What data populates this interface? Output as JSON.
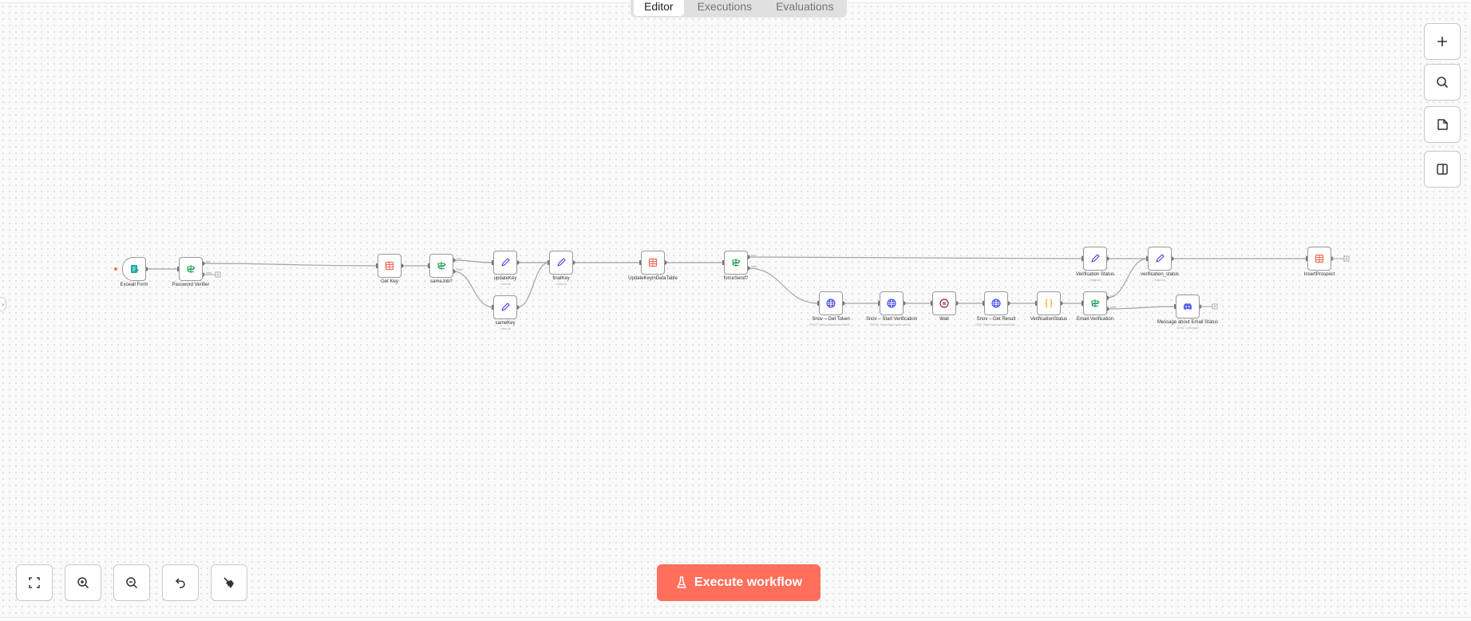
{
  "tabs": [
    {
      "label": "Editor",
      "active": true
    },
    {
      "label": "Executions",
      "active": false
    },
    {
      "label": "Evaluations",
      "active": false
    }
  ],
  "execute_button": {
    "label": "Execute workflow",
    "icon": "flask-icon",
    "color": "#ff6f5c"
  },
  "right_toolbar": [
    {
      "name": "add-node-button",
      "icon": "plus-icon"
    },
    {
      "name": "search-nodes-button",
      "icon": "search-icon"
    },
    {
      "name": "add-sticky-note-button",
      "icon": "sticky-note-icon"
    },
    {
      "name": "toggle-panel-button",
      "icon": "panel-icon"
    }
  ],
  "bottom_toolbar": [
    {
      "name": "fit-view-button",
      "icon": "fit-view-icon"
    },
    {
      "name": "zoom-in-button",
      "icon": "zoom-in-icon"
    },
    {
      "name": "zoom-out-button",
      "icon": "zoom-out-icon"
    },
    {
      "name": "undo-button",
      "icon": "undo-icon"
    },
    {
      "name": "tidy-up-button",
      "icon": "broom-icon"
    }
  ],
  "nodes": [
    {
      "id": "exceall",
      "label": "Exceall Form",
      "sub": "",
      "icon": "form-icon",
      "color": "#19a9a4"
    },
    {
      "id": "pwd",
      "label": "Password Verifier",
      "sub": "",
      "icon": "if-icon",
      "color": "#1f9d55"
    },
    {
      "id": "getkey",
      "label": "Get Key",
      "sub": "",
      "icon": "table-icon",
      "color": "#f2674f"
    },
    {
      "id": "samejob",
      "label": "sameJob?",
      "sub": "",
      "icon": "if-icon",
      "color": "#1f9d55"
    },
    {
      "id": "updatekey",
      "label": "updateKey",
      "sub": "manual",
      "icon": "pencil-icon",
      "color": "#3d43e6"
    },
    {
      "id": "samekey",
      "label": "sameKey",
      "sub": "manual",
      "icon": "pencil-icon",
      "color": "#3d43e6"
    },
    {
      "id": "finalkey",
      "label": "finalKey",
      "sub": "manual",
      "icon": "pencil-icon",
      "color": "#3d43e6"
    },
    {
      "id": "updatetable",
      "label": "UpdateKeyInDataTable",
      "sub": "",
      "icon": "table-icon",
      "color": "#f2674f"
    },
    {
      "id": "forcesend",
      "label": "forceSend?",
      "sub": "",
      "icon": "if-icon",
      "color": "#1f9d55"
    },
    {
      "id": "token",
      "label": "Snov – Get Token",
      "sub": "POST: https://api.snov.io/v1/...",
      "icon": "globe-icon",
      "color": "#3d43e6"
    },
    {
      "id": "startver",
      "label": "Snov – Start Verification",
      "sub": "POST: https://api.snov.io/v2/...",
      "icon": "globe-icon",
      "color": "#3d43e6"
    },
    {
      "id": "wait",
      "label": "Wait",
      "sub": "",
      "icon": "pause-icon",
      "color": "#8a1c3c"
    },
    {
      "id": "getresult",
      "label": "Snov – Get Result",
      "sub": "GET: https://api.snov.io/v2/e...",
      "icon": "globe-icon",
      "color": "#3d43e6"
    },
    {
      "id": "verstatus",
      "label": "VerificationStatus",
      "sub": "",
      "icon": "code-braces-icon",
      "color": "#f59e0b"
    },
    {
      "id": "emailver",
      "label": "Email Verification",
      "sub": "",
      "icon": "if-icon",
      "color": "#1f9d55"
    },
    {
      "id": "verstatus2",
      "label": "Verification Status",
      "sub": "manual",
      "icon": "pencil-icon",
      "color": "#3d43e6"
    },
    {
      "id": "verstatus3",
      "label": "verification_status",
      "sub": "manual",
      "icon": "pencil-icon",
      "color": "#3d43e6"
    },
    {
      "id": "insert",
      "label": "InsertProspect",
      "sub": "",
      "icon": "table-icon",
      "color": "#f2674f"
    },
    {
      "id": "message",
      "label": "Message about Email Status",
      "sub": "send: message",
      "icon": "discord-icon",
      "color": "#5865f2"
    }
  ],
  "edges": [
    [
      "exceall",
      "pwd",
      ""
    ],
    [
      "pwd",
      "getkey",
      "true"
    ],
    [
      "getkey",
      "samejob",
      ""
    ],
    [
      "samejob",
      "updatekey",
      "true"
    ],
    [
      "samejob",
      "samekey",
      "false"
    ],
    [
      "updatekey",
      "finalkey",
      ""
    ],
    [
      "samekey",
      "finalkey",
      ""
    ],
    [
      "finalkey",
      "updatetable",
      ""
    ],
    [
      "updatetable",
      "forcesend",
      ""
    ],
    [
      "forcesend",
      "verstatus2",
      "true"
    ],
    [
      "forcesend",
      "token",
      "false"
    ],
    [
      "token",
      "startver",
      ""
    ],
    [
      "startver",
      "wait",
      ""
    ],
    [
      "wait",
      "getresult",
      ""
    ],
    [
      "getresult",
      "verstatus",
      ""
    ],
    [
      "verstatus",
      "emailver",
      ""
    ],
    [
      "emailver",
      "verstatus3",
      "true"
    ],
    [
      "emailver",
      "message",
      "false"
    ],
    [
      "verstatus2",
      "verstatus3",
      ""
    ],
    [
      "verstatus3",
      "insert",
      ""
    ]
  ],
  "open_outputs": [
    [
      "pwd",
      "false"
    ],
    [
      "insert",
      ""
    ],
    [
      "message",
      ""
    ]
  ]
}
